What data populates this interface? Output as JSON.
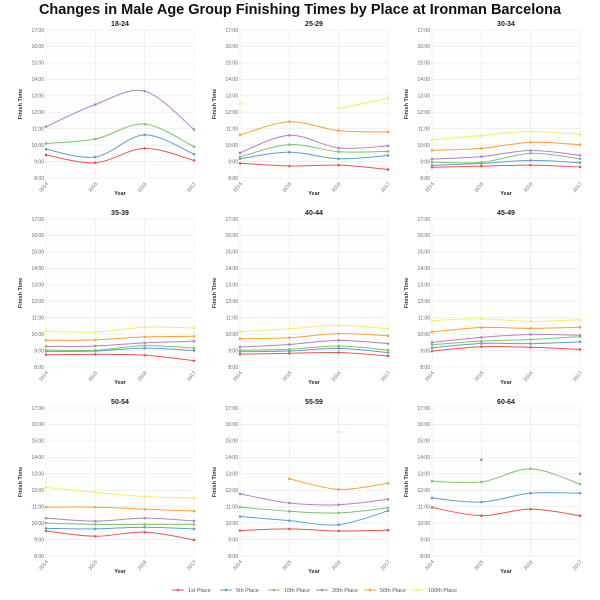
{
  "chart_data": {
    "type": "line",
    "title": "Changes in Male Age Group Finishing Times by Place at Ironman Barcelona",
    "xlabel": "Year",
    "ylabel": "Finish Time",
    "x": [
      2014,
      2015,
      2016,
      2017
    ],
    "ylim": [
      "8:00",
      "17:00"
    ],
    "yticks": [
      "8:00",
      "9:00",
      "10:00",
      "11:00",
      "12:00",
      "13:00",
      "14:00",
      "15:00",
      "16:00",
      "17:00"
    ],
    "grid": true,
    "legend": "bottom",
    "series_names": [
      "1st Place",
      "5th Place",
      "10th Place",
      "20th Place",
      "50th Place",
      "100th Place"
    ],
    "colors": [
      "#ef5350",
      "#5b9fd5",
      "#7cc46b",
      "#b57fc9",
      "#ffa033",
      "#f4ef5f"
    ],
    "value_units": "hours",
    "panels": [
      {
        "title": "18-24",
        "series": [
          [
            9.4,
            8.93,
            9.8,
            9.07
          ],
          [
            9.75,
            9.28,
            10.62,
            9.45
          ],
          [
            10.1,
            10.37,
            11.28,
            9.9
          ],
          [
            11.12,
            12.47,
            13.28,
            10.95
          ],
          [
            null,
            null,
            null,
            null
          ],
          [
            null,
            null,
            null,
            null
          ]
        ]
      },
      {
        "title": "25-29",
        "series": [
          [
            8.9,
            8.73,
            8.78,
            8.52
          ],
          [
            9.17,
            9.57,
            9.17,
            9.37
          ],
          [
            9.28,
            10.03,
            9.6,
            9.62
          ],
          [
            9.53,
            10.6,
            9.83,
            9.95
          ],
          [
            10.62,
            11.42,
            10.88,
            10.8
          ],
          [
            12.52,
            null,
            12.22,
            12.85
          ]
        ]
      },
      {
        "title": "30-34",
        "series": [
          [
            8.65,
            8.72,
            8.78,
            8.67
          ],
          [
            8.77,
            8.88,
            9.07,
            8.93
          ],
          [
            8.97,
            8.95,
            9.5,
            9.17
          ],
          [
            9.15,
            9.3,
            9.67,
            9.38
          ],
          [
            9.68,
            9.8,
            10.17,
            10.03
          ],
          [
            10.32,
            10.58,
            10.83,
            10.65
          ]
        ]
      },
      {
        "title": "35-39",
        "series": [
          [
            8.75,
            8.77,
            8.72,
            8.38
          ],
          [
            8.95,
            8.97,
            9.15,
            9.0
          ],
          [
            9.03,
            9.02,
            9.3,
            9.15
          ],
          [
            9.25,
            9.28,
            9.47,
            9.57
          ],
          [
            9.62,
            9.65,
            9.83,
            9.87
          ],
          [
            10.18,
            10.13,
            10.42,
            10.37
          ]
        ]
      },
      {
        "title": "40-44",
        "series": [
          [
            8.78,
            8.83,
            8.88,
            8.67
          ],
          [
            8.93,
            8.97,
            9.13,
            8.88
          ],
          [
            9.02,
            9.08,
            9.28,
            9.03
          ],
          [
            9.22,
            9.37,
            9.62,
            9.42
          ],
          [
            9.72,
            9.78,
            10.03,
            9.9
          ],
          [
            10.15,
            10.32,
            10.53,
            10.33
          ]
        ]
      },
      {
        "title": "45-49",
        "series": [
          [
            8.97,
            9.23,
            9.2,
            9.07
          ],
          [
            9.17,
            9.43,
            9.42,
            9.53
          ],
          [
            9.35,
            9.57,
            9.67,
            9.85
          ],
          [
            9.5,
            9.8,
            9.98,
            9.93
          ],
          [
            10.13,
            10.4,
            10.35,
            10.42
          ],
          [
            10.82,
            10.93,
            10.77,
            10.88
          ]
        ]
      },
      {
        "title": "50-54",
        "series": [
          [
            9.52,
            9.2,
            9.45,
            8.98
          ],
          [
            9.68,
            9.65,
            9.75,
            9.65
          ],
          [
            10.0,
            9.92,
            9.92,
            9.92
          ],
          [
            10.3,
            10.12,
            10.3,
            10.13
          ],
          [
            10.97,
            10.97,
            10.85,
            10.73
          ],
          [
            12.17,
            11.87,
            11.62,
            11.53
          ]
        ]
      },
      {
        "title": "55-59",
        "series": [
          [
            9.55,
            9.65,
            9.52,
            9.57
          ],
          [
            10.4,
            10.15,
            9.9,
            10.75
          ],
          [
            10.97,
            10.72,
            10.62,
            10.93
          ],
          [
            11.78,
            11.22,
            11.12,
            11.45
          ],
          [
            null,
            12.7,
            12.05,
            12.42
          ],
          [
            null,
            null,
            15.55,
            null
          ]
        ]
      },
      {
        "title": "60-64",
        "series": [
          [
            10.95,
            10.45,
            10.85,
            10.45
          ],
          [
            11.53,
            11.28,
            11.82,
            11.82
          ],
          [
            12.55,
            12.5,
            13.3,
            12.37
          ],
          [
            null,
            13.85,
            null,
            13.0
          ],
          [
            null,
            null,
            null,
            null
          ],
          [
            null,
            null,
            null,
            null
          ]
        ]
      }
    ]
  }
}
